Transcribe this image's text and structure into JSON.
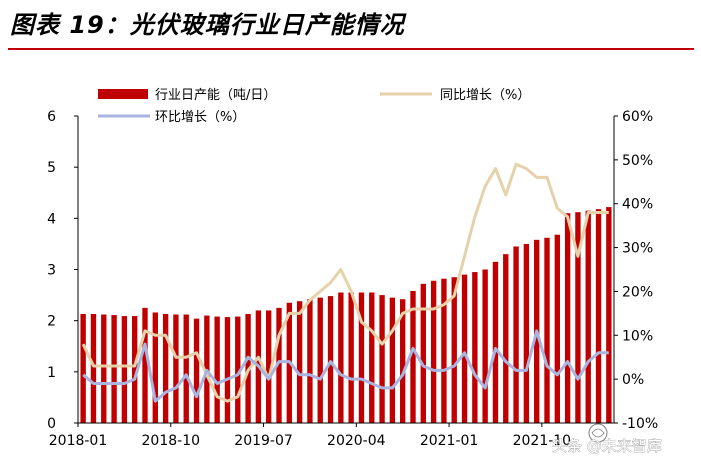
{
  "title": "图表 19：光伏玻璃行业日产能情况",
  "watermark": {
    "text": "头条 @未来智库",
    "icon": "watermark-logo-icon"
  },
  "colors": {
    "bar": "#c00000",
    "yoy_line": "#e6d2aa",
    "mom_line": "#a9b4e0",
    "axis": "#000000",
    "title_rule": "#c00000"
  },
  "chart_data": {
    "type": "bar",
    "title": "图表 19：光伏玻璃行业日产能情况",
    "x_tick_labels": [
      "2018-01",
      "2018-10",
      "2019-07",
      "2020-04",
      "2021-01",
      "2021-10"
    ],
    "x_tick_indices": [
      0,
      9,
      18,
      27,
      36,
      45
    ],
    "y_left": {
      "min": 0,
      "max": 6,
      "step": 1,
      "tick_labels": [
        "0",
        "1",
        "2",
        "3",
        "4",
        "5",
        "6"
      ]
    },
    "y_right": {
      "min": -10,
      "max": 60,
      "step": 10,
      "tick_labels": [
        "-10%",
        "0%",
        "10%",
        "20%",
        "30%",
        "40%",
        "50%",
        "60%"
      ]
    },
    "legend": [
      {
        "key": "capacity",
        "label": "行业日产能（吨/日）",
        "marker": "bar"
      },
      {
        "key": "yoy",
        "label": "同比增长（%）",
        "marker": "line"
      },
      {
        "key": "mom",
        "label": "环比增长（%）",
        "marker": "line"
      }
    ],
    "categories": [
      "2018-01",
      "2018-02",
      "2018-03",
      "2018-04",
      "2018-05",
      "2018-06",
      "2018-07",
      "2018-08",
      "2018-09",
      "2018-10",
      "2018-11",
      "2018-12",
      "2019-01",
      "2019-02",
      "2019-03",
      "2019-04",
      "2019-05",
      "2019-06",
      "2019-07",
      "2019-08",
      "2019-09",
      "2019-10",
      "2019-11",
      "2019-12",
      "2020-01",
      "2020-02",
      "2020-03",
      "2020-04",
      "2020-05",
      "2020-06",
      "2020-07",
      "2020-08",
      "2020-09",
      "2020-10",
      "2020-11",
      "2020-12",
      "2021-01",
      "2021-02",
      "2021-03",
      "2021-04",
      "2021-05",
      "2021-06",
      "2021-07",
      "2021-08",
      "2021-09",
      "2021-10",
      "2021-11",
      "2021-12",
      "2022-01",
      "2022-02",
      "2022-03",
      "2022-04"
    ],
    "series": [
      {
        "name": "行业日产能（吨/日）",
        "axis": "left",
        "type": "bar",
        "values": [
          2.13,
          2.13,
          2.12,
          2.11,
          2.09,
          2.09,
          2.25,
          2.16,
          2.13,
          2.12,
          2.12,
          2.04,
          2.1,
          2.08,
          2.07,
          2.08,
          2.13,
          2.2,
          2.2,
          2.25,
          2.35,
          2.38,
          2.42,
          2.45,
          2.48,
          2.55,
          2.55,
          2.55,
          2.55,
          2.5,
          2.45,
          2.42,
          2.58,
          2.72,
          2.78,
          2.82,
          2.85,
          2.9,
          2.95,
          3.0,
          3.15,
          3.3,
          3.45,
          3.5,
          3.58,
          3.62,
          3.68,
          4.1,
          4.12,
          4.15,
          4.18,
          4.22
        ]
      },
      {
        "name": "同比增长（%）",
        "axis": "right",
        "type": "line",
        "values": [
          8,
          3,
          3,
          3,
          3,
          3,
          11,
          10,
          10,
          5,
          5,
          6,
          1,
          -4,
          -5,
          -4,
          2,
          5,
          0,
          10,
          15,
          15,
          18,
          20,
          22,
          25,
          20,
          13,
          11,
          8,
          11,
          15,
          16,
          16,
          16,
          17,
          19,
          28,
          37,
          44,
          48,
          42,
          49,
          48,
          46,
          46,
          39,
          37,
          28,
          38,
          38,
          38
        ]
      },
      {
        "name": "环比增长（%）",
        "axis": "right",
        "type": "line",
        "values": [
          1,
          -1,
          -1,
          -1,
          -1,
          0,
          8,
          -5,
          -3,
          -2,
          1,
          -4,
          2,
          -1,
          0,
          1,
          5,
          3,
          0,
          4,
          4,
          1,
          1,
          0,
          4,
          1,
          0,
          0,
          -1,
          -2,
          -2,
          1,
          7,
          3,
          2,
          2,
          3,
          6,
          1,
          -2,
          7,
          4,
          2,
          2,
          11,
          3,
          1,
          4,
          0,
          4,
          6,
          6
        ]
      }
    ]
  }
}
